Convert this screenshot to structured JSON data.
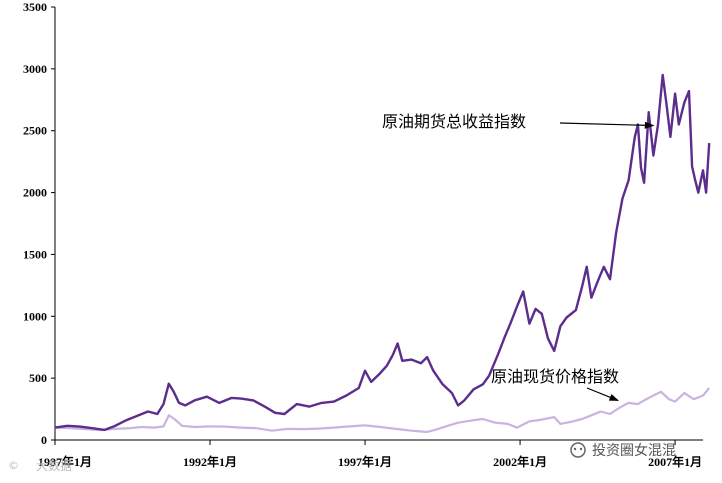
{
  "chart_data": {
    "type": "line",
    "title": "",
    "xlabel": "",
    "ylabel": "",
    "ylim": [
      0,
      3500
    ],
    "xlim": [
      1987.0,
      2007.9
    ],
    "yticks": [
      "0",
      "500",
      "1000",
      "1500",
      "2000",
      "2500",
      "3000",
      "3500"
    ],
    "xticks": [
      {
        "x": 1987.0,
        "label": "1987年1月"
      },
      {
        "x": 1992.0,
        "label": "1992年1月"
      },
      {
        "x": 1997.0,
        "label": "1997年1月"
      },
      {
        "x": 2002.0,
        "label": "2002年1月"
      },
      {
        "x": 2007.0,
        "label": "2007年1月"
      }
    ],
    "grid": false,
    "legend": "none",
    "series": [
      {
        "name": "原油期货总收益指数",
        "color": "#5b2d8c",
        "points": [
          [
            1987.0,
            100
          ],
          [
            1987.4,
            115
          ],
          [
            1987.8,
            108
          ],
          [
            1988.2,
            95
          ],
          [
            1988.6,
            82
          ],
          [
            1988.9,
            110
          ],
          [
            1989.3,
            160
          ],
          [
            1989.7,
            200
          ],
          [
            1990.0,
            230
          ],
          [
            1990.3,
            210
          ],
          [
            1990.5,
            290
          ],
          [
            1990.67,
            455
          ],
          [
            1990.83,
            390
          ],
          [
            1991.0,
            300
          ],
          [
            1991.2,
            280
          ],
          [
            1991.5,
            320
          ],
          [
            1991.9,
            350
          ],
          [
            1992.3,
            300
          ],
          [
            1992.7,
            340
          ],
          [
            1993.0,
            335
          ],
          [
            1993.4,
            320
          ],
          [
            1993.8,
            265
          ],
          [
            1994.1,
            220
          ],
          [
            1994.4,
            210
          ],
          [
            1994.8,
            290
          ],
          [
            1995.2,
            270
          ],
          [
            1995.6,
            300
          ],
          [
            1996.0,
            310
          ],
          [
            1996.4,
            360
          ],
          [
            1996.8,
            420
          ],
          [
            1997.0,
            560
          ],
          [
            1997.2,
            470
          ],
          [
            1997.45,
            530
          ],
          [
            1997.7,
            600
          ],
          [
            1997.9,
            690
          ],
          [
            1998.05,
            780
          ],
          [
            1998.2,
            640
          ],
          [
            1998.5,
            650
          ],
          [
            1998.8,
            620
          ],
          [
            1999.0,
            670
          ],
          [
            1999.2,
            560
          ],
          [
            1999.5,
            450
          ],
          [
            1999.8,
            380
          ],
          [
            2000.0,
            280
          ],
          [
            2000.2,
            320
          ],
          [
            2000.5,
            410
          ],
          [
            2000.8,
            450
          ],
          [
            2001.0,
            520
          ],
          [
            2001.3,
            700
          ],
          [
            2001.5,
            830
          ],
          [
            2001.7,
            950
          ],
          [
            2001.9,
            1080
          ],
          [
            2002.1,
            1200
          ],
          [
            2002.3,
            940
          ],
          [
            2002.5,
            1060
          ],
          [
            2002.7,
            1020
          ],
          [
            2002.9,
            820
          ],
          [
            2003.1,
            720
          ],
          [
            2003.3,
            920
          ],
          [
            2003.5,
            990
          ],
          [
            2003.8,
            1050
          ],
          [
            2004.0,
            1240
          ],
          [
            2004.15,
            1400
          ],
          [
            2004.3,
            1150
          ],
          [
            2004.5,
            1280
          ],
          [
            2004.7,
            1400
          ],
          [
            2004.9,
            1300
          ],
          [
            2005.1,
            1680
          ],
          [
            2005.3,
            1950
          ],
          [
            2005.5,
            2100
          ],
          [
            2005.7,
            2450
          ],
          [
            2005.8,
            2550
          ],
          [
            2005.9,
            2200
          ],
          [
            2006.0,
            2080
          ],
          [
            2006.15,
            2650
          ],
          [
            2006.3,
            2300
          ],
          [
            2006.45,
            2550
          ],
          [
            2006.6,
            2950
          ],
          [
            2006.72,
            2720
          ],
          [
            2006.85,
            2450
          ],
          [
            2007.0,
            2800
          ],
          [
            2007.12,
            2550
          ],
          [
            2007.3,
            2730
          ],
          [
            2007.45,
            2820
          ],
          [
            2007.55,
            2210
          ],
          [
            2007.65,
            2100
          ],
          [
            2007.75,
            2000
          ],
          [
            2007.9,
            2180
          ],
          [
            2008.0,
            2000
          ],
          [
            2008.1,
            2400
          ]
        ]
      },
      {
        "name": "原油现货价格指数",
        "color": "#c9b3e0",
        "points": [
          [
            1987.0,
            100
          ],
          [
            1987.5,
            95
          ],
          [
            1988.0,
            88
          ],
          [
            1988.5,
            80
          ],
          [
            1988.9,
            90
          ],
          [
            1989.4,
            95
          ],
          [
            1989.8,
            105
          ],
          [
            1990.2,
            100
          ],
          [
            1990.5,
            110
          ],
          [
            1990.67,
            200
          ],
          [
            1990.85,
            170
          ],
          [
            1991.1,
            115
          ],
          [
            1991.5,
            105
          ],
          [
            1992.0,
            110
          ],
          [
            1992.5,
            108
          ],
          [
            1993.0,
            100
          ],
          [
            1993.5,
            95
          ],
          [
            1994.0,
            75
          ],
          [
            1994.5,
            90
          ],
          [
            1995.0,
            88
          ],
          [
            1995.5,
            92
          ],
          [
            1996.0,
            100
          ],
          [
            1996.5,
            110
          ],
          [
            1997.0,
            118
          ],
          [
            1997.5,
            105
          ],
          [
            1998.0,
            90
          ],
          [
            1998.5,
            75
          ],
          [
            1999.0,
            65
          ],
          [
            1999.3,
            85
          ],
          [
            1999.6,
            110
          ],
          [
            2000.0,
            140
          ],
          [
            2000.5,
            160
          ],
          [
            2000.8,
            170
          ],
          [
            2001.2,
            140
          ],
          [
            2001.6,
            130
          ],
          [
            2001.9,
            100
          ],
          [
            2002.3,
            150
          ],
          [
            2002.7,
            165
          ],
          [
            2003.1,
            185
          ],
          [
            2003.3,
            130
          ],
          [
            2003.7,
            150
          ],
          [
            2004.0,
            170
          ],
          [
            2004.3,
            200
          ],
          [
            2004.6,
            230
          ],
          [
            2004.9,
            210
          ],
          [
            2005.2,
            260
          ],
          [
            2005.5,
            300
          ],
          [
            2005.8,
            290
          ],
          [
            2006.0,
            320
          ],
          [
            2006.3,
            360
          ],
          [
            2006.55,
            390
          ],
          [
            2006.8,
            330
          ],
          [
            2007.0,
            310
          ],
          [
            2007.3,
            380
          ],
          [
            2007.6,
            330
          ],
          [
            2007.9,
            360
          ],
          [
            2008.1,
            420
          ]
        ]
      }
    ],
    "annotations": [
      {
        "text": "原油期货总收益指数",
        "target": [
          2006.68,
          2550
        ]
      },
      {
        "text": "原油现货价格指数",
        "target": [
          2005.22,
          255
        ]
      }
    ]
  },
  "watermarks": {
    "left": "大数据",
    "right": "投资圈女混混"
  }
}
